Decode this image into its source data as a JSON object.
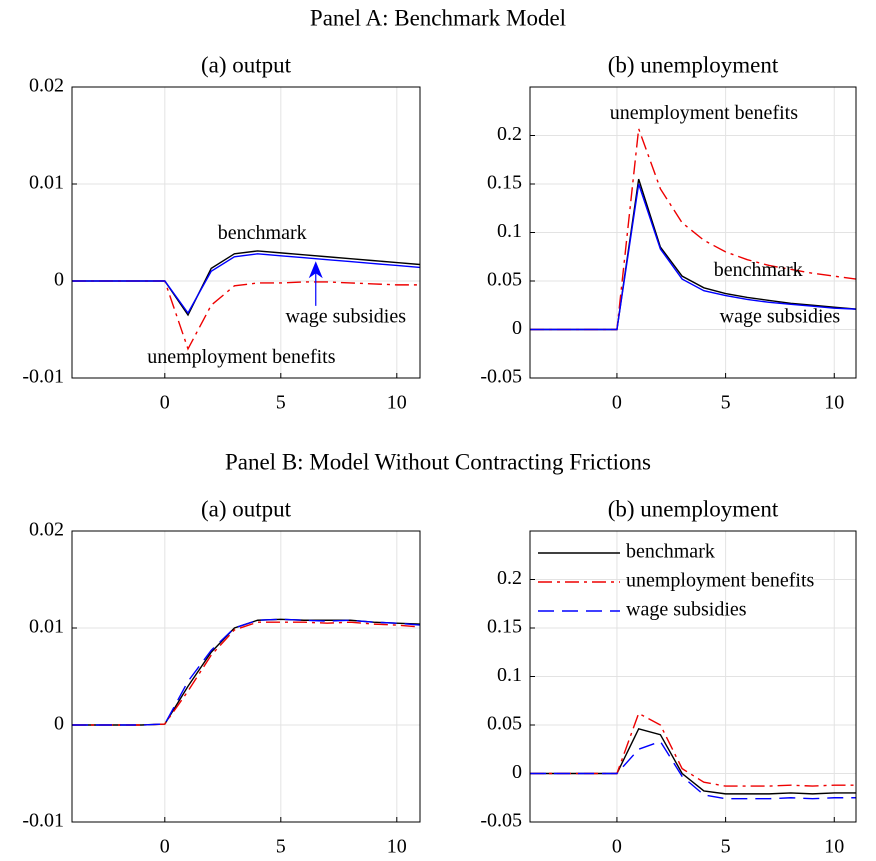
{
  "panels": [
    {
      "title": "Panel A: Benchmark Model"
    },
    {
      "title": "Panel B: Model Without Contracting Frictions"
    }
  ],
  "chart_data": [
    {
      "type": "line",
      "title": "(a) output",
      "x": [
        -4,
        -3,
        -2,
        -1,
        0,
        1,
        2,
        3,
        4,
        5,
        6,
        7,
        8,
        9,
        10,
        11
      ],
      "xlim": [
        -4,
        11
      ],
      "xticks": [
        0,
        5,
        10
      ],
      "ylim": [
        -0.01,
        0.02
      ],
      "yticks": [
        -0.01,
        0,
        0.01,
        0.02
      ],
      "grid": true,
      "series": [
        {
          "name": "benchmark",
          "color": "#000000",
          "dash": "solid",
          "values": [
            0,
            0,
            0,
            0,
            0,
            -0.0035,
            0.0013,
            0.0028,
            0.0031,
            0.0029,
            0.0027,
            0.0025,
            0.0023,
            0.0021,
            0.0019,
            0.0017
          ]
        },
        {
          "name": "unemployment benefits",
          "color": "#ee0000",
          "dash": "dashdot",
          "values": [
            0,
            0,
            0,
            0,
            0,
            -0.007,
            -0.0025,
            -0.0005,
            -0.0002,
            -0.0002,
            -0.0001,
            -0.0001,
            -0.0002,
            -0.0003,
            -0.0004,
            -0.0004
          ]
        },
        {
          "name": "wage subsidies",
          "color": "#0000ff",
          "dash": "solid",
          "values": [
            0,
            0,
            0,
            0,
            0,
            -0.0033,
            0.001,
            0.0025,
            0.0028,
            0.0026,
            0.0024,
            0.0022,
            0.002,
            0.0018,
            0.0016,
            0.0014
          ]
        }
      ],
      "annotations": [
        {
          "text": "benchmark",
          "x": 4.2,
          "y": 0.0048,
          "color": "#000000"
        },
        {
          "text": "wage subsidies",
          "x": 7.8,
          "y": -0.0038,
          "color": "#0000ff",
          "arrow_to_series": 2
        },
        {
          "text": "unemployment benefits",
          "x": 3.3,
          "y": -0.008,
          "color": "#ee0000"
        }
      ]
    },
    {
      "type": "line",
      "title": "(b) unemployment",
      "x": [
        -4,
        -3,
        -2,
        -1,
        0,
        1,
        2,
        3,
        4,
        5,
        6,
        7,
        8,
        9,
        10,
        11
      ],
      "xlim": [
        -4,
        11
      ],
      "xticks": [
        0,
        5,
        10
      ],
      "ylim": [
        -0.05,
        0.25
      ],
      "yticks": [
        -0.05,
        0,
        0.05,
        0.1,
        0.15,
        0.2
      ],
      "grid": true,
      "series": [
        {
          "name": "benchmark",
          "color": "#000000",
          "dash": "solid",
          "values": [
            0,
            0,
            0,
            0,
            0,
            0.155,
            0.085,
            0.055,
            0.043,
            0.037,
            0.033,
            0.03,
            0.027,
            0.025,
            0.023,
            0.021
          ]
        },
        {
          "name": "unemployment benefits",
          "color": "#ee0000",
          "dash": "dashdot",
          "values": [
            0,
            0,
            0,
            0,
            0,
            0.207,
            0.145,
            0.11,
            0.092,
            0.08,
            0.072,
            0.066,
            0.062,
            0.058,
            0.055,
            0.052
          ]
        },
        {
          "name": "wage subsidies",
          "color": "#0000ff",
          "dash": "solid",
          "values": [
            0,
            0,
            0,
            0,
            0,
            0.15,
            0.083,
            0.052,
            0.04,
            0.035,
            0.031,
            0.028,
            0.026,
            0.024,
            0.022,
            0.021
          ]
        }
      ],
      "annotations": [
        {
          "text": "unemployment benefits",
          "x": 4,
          "y": 0.222,
          "color": "#ee0000"
        },
        {
          "text": "benchmark",
          "x": 6.5,
          "y": 0.06,
          "color": "#000000"
        },
        {
          "text": "wage subsidies",
          "x": 7.5,
          "y": 0.012,
          "color": "#0000ff"
        }
      ]
    },
    {
      "type": "line",
      "title": "(a) output",
      "x": [
        -4,
        -3,
        -2,
        -1,
        0,
        1,
        2,
        3,
        4,
        5,
        6,
        7,
        8,
        9,
        10,
        11
      ],
      "xlim": [
        -4,
        11
      ],
      "xticks": [
        0,
        5,
        10
      ],
      "ylim": [
        -0.01,
        0.02
      ],
      "yticks": [
        -0.01,
        0,
        0.01,
        0.02
      ],
      "grid": true,
      "series": [
        {
          "name": "benchmark",
          "color": "#000000",
          "dash": "solid",
          "values": [
            0,
            0,
            0,
            0,
            0.0001,
            0.004,
            0.0075,
            0.01,
            0.0108,
            0.0109,
            0.0108,
            0.0108,
            0.0108,
            0.0106,
            0.0105,
            0.0104
          ]
        },
        {
          "name": "unemployment benefits",
          "color": "#ee0000",
          "dash": "dashdot",
          "values": [
            0,
            0,
            0,
            0,
            0.0001,
            0.0035,
            0.0072,
            0.0098,
            0.0106,
            0.0106,
            0.0106,
            0.0105,
            0.0106,
            0.0104,
            0.0103,
            0.0101
          ]
        },
        {
          "name": "wage subsidies",
          "color": "#0000ff",
          "dash": "dashed",
          "values": [
            0,
            0,
            0,
            0,
            0.0001,
            0.0045,
            0.0077,
            0.01,
            0.0108,
            0.0109,
            0.0108,
            0.0107,
            0.0108,
            0.0106,
            0.0105,
            0.0103
          ]
        }
      ]
    },
    {
      "type": "line",
      "title": "(b) unemployment",
      "x": [
        -4,
        -3,
        -2,
        -1,
        0,
        1,
        2,
        3,
        4,
        5,
        6,
        7,
        8,
        9,
        10,
        11
      ],
      "xlim": [
        -4,
        11
      ],
      "xticks": [
        0,
        5,
        10
      ],
      "ylim": [
        -0.05,
        0.25
      ],
      "yticks": [
        -0.05,
        0,
        0.05,
        0.1,
        0.15,
        0.2
      ],
      "grid": true,
      "legend": "upper left",
      "series": [
        {
          "name": "benchmark",
          "color": "#000000",
          "dash": "solid",
          "values": [
            0,
            0,
            0,
            0,
            0,
            0.046,
            0.04,
            0,
            -0.018,
            -0.021,
            -0.021,
            -0.021,
            -0.02,
            -0.021,
            -0.02,
            -0.02
          ]
        },
        {
          "name": "unemployment benefits",
          "color": "#ee0000",
          "dash": "dashdot",
          "values": [
            0,
            0,
            0,
            0,
            0,
            0.062,
            0.05,
            0.005,
            -0.009,
            -0.013,
            -0.013,
            -0.013,
            -0.012,
            -0.013,
            -0.012,
            -0.012
          ]
        },
        {
          "name": "wage subsidies",
          "color": "#0000ff",
          "dash": "dashed",
          "values": [
            0,
            0,
            0,
            0,
            0,
            0.025,
            0.033,
            -0.003,
            -0.022,
            -0.026,
            -0.026,
            -0.026,
            -0.025,
            -0.026,
            -0.025,
            -0.025
          ]
        }
      ]
    }
  ]
}
